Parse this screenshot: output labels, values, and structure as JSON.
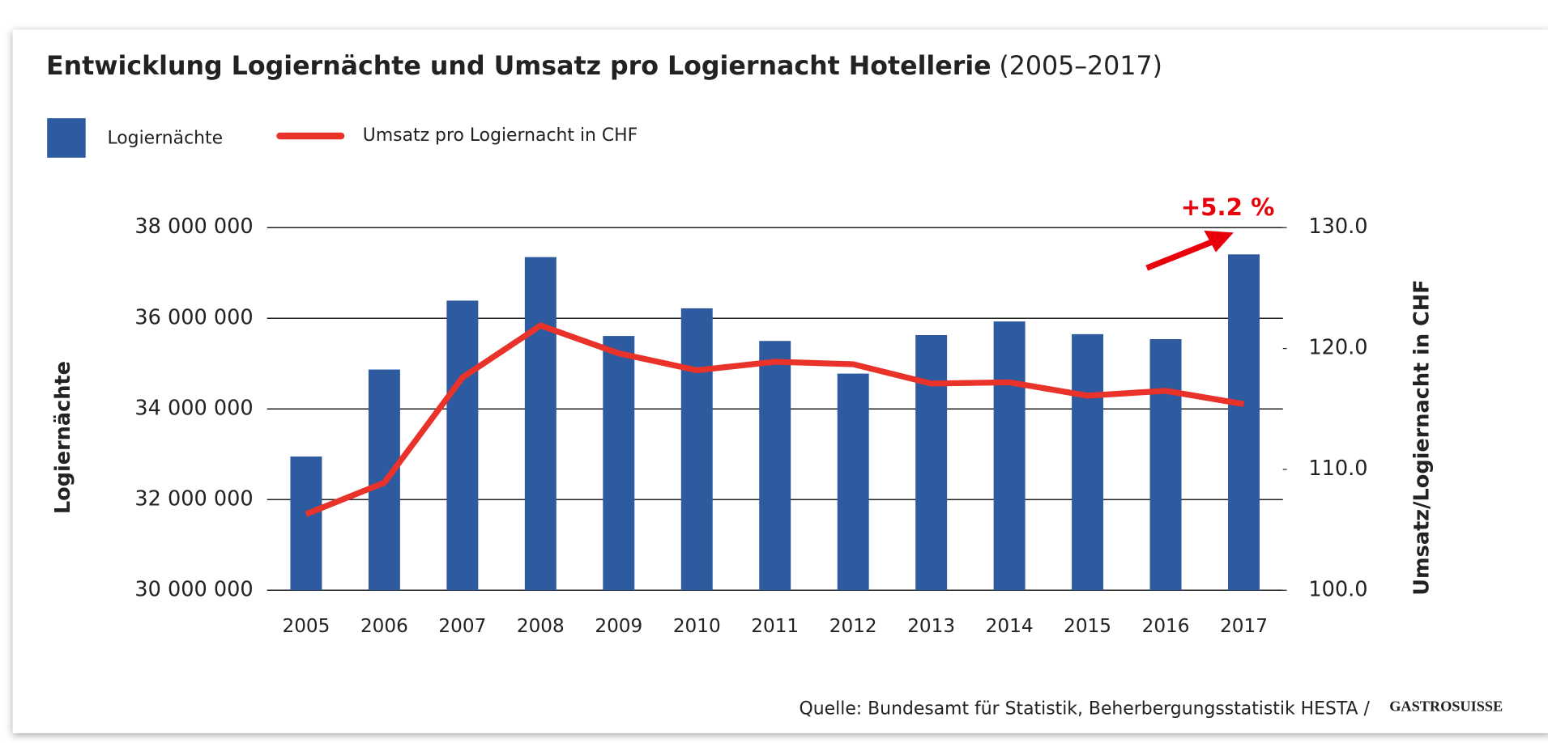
{
  "chart_data": {
    "type": "bar_line",
    "title": "Entwicklung Logiernächte und Umsatz pro Logiernacht Hotellerie",
    "title_years": "(2005–2017)",
    "y_label": "Logiernächte",
    "y2_label": "Umsatz/Logiernacht in CHF",
    "categories": [
      "2005",
      "2006",
      "2007",
      "2008",
      "2009",
      "2010",
      "2011",
      "2012",
      "2013",
      "2014",
      "2015",
      "2016",
      "2017"
    ],
    "series": [
      {
        "name": "Logiernächte",
        "type": "bar",
        "color": "#2e5aa0",
        "axis": "y",
        "values": [
          32950000,
          34870000,
          36390000,
          37350000,
          35610000,
          36220000,
          35500000,
          34780000,
          35630000,
          35930000,
          35650000,
          35540000,
          37410000
        ]
      },
      {
        "name": "Umsatz pro Logiernacht in CHF",
        "type": "line",
        "color": "#e8322a",
        "axis": "y2",
        "values": [
          106.3,
          108.9,
          117.6,
          121.9,
          119.6,
          118.2,
          118.9,
          118.7,
          117.1,
          117.2,
          116.1,
          116.5,
          115.4
        ]
      }
    ],
    "ylim": [
      30000000,
      38000000
    ],
    "yticks": [
      {
        "value": 30000000,
        "label": "30 000 000"
      },
      {
        "value": 32000000,
        "label": "32 000 000"
      },
      {
        "value": 34000000,
        "label": "34 000 000"
      },
      {
        "value": 36000000,
        "label": "36 000 000"
      },
      {
        "value": 38000000,
        "label": "38 000 000"
      }
    ],
    "y2lim": [
      100,
      130
    ],
    "y2ticks": [
      {
        "value": 100,
        "label": "100.0"
      },
      {
        "value": 110,
        "label": "110.0"
      },
      {
        "value": 120,
        "label": "120.0"
      },
      {
        "value": 130,
        "label": "130.0"
      }
    ],
    "grid": true,
    "annotation": "+5.2 %",
    "source": "Quelle: Bundesamt für Statistik, Beherbergungsstatistik HESTA /",
    "logo": "GASTROSUISSE"
  }
}
